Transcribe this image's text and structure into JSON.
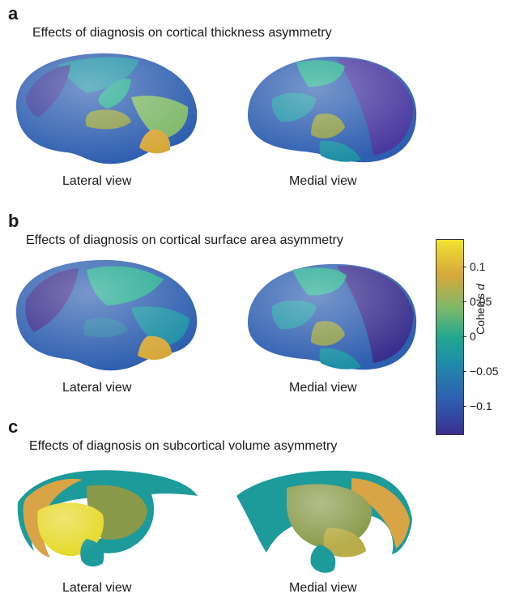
{
  "panels": [
    {
      "letter": "a",
      "title": "Effects of diagnosis on cortical thickness asymmetry",
      "left_label": "Lateral view",
      "right_label": "Medial view"
    },
    {
      "letter": "b",
      "title": "Effects of diagnosis on cortical surface area asymmetry",
      "left_label": "Lateral view",
      "right_label": "Medial view"
    },
    {
      "letter": "c",
      "title": "Effects of diagnosis on subcortical volume asymmetry",
      "left_label": "Lateral view",
      "right_label": "Medial view"
    }
  ],
  "colorbar": {
    "label_prefix": "Cohen's ",
    "label_italic": "d",
    "ticks": [
      "0.1",
      "0.05",
      "0",
      "−0.05",
      "−0.1"
    ],
    "tick_values": [
      0.1,
      0.05,
      0,
      -0.05,
      -0.1
    ],
    "range": [
      -0.14,
      0.14
    ],
    "colors": [
      "#3b2f8e",
      "#2f5fb0",
      "#1f8fa6",
      "#22a890",
      "#7fb86a",
      "#d6a83a",
      "#f2e332"
    ]
  }
}
